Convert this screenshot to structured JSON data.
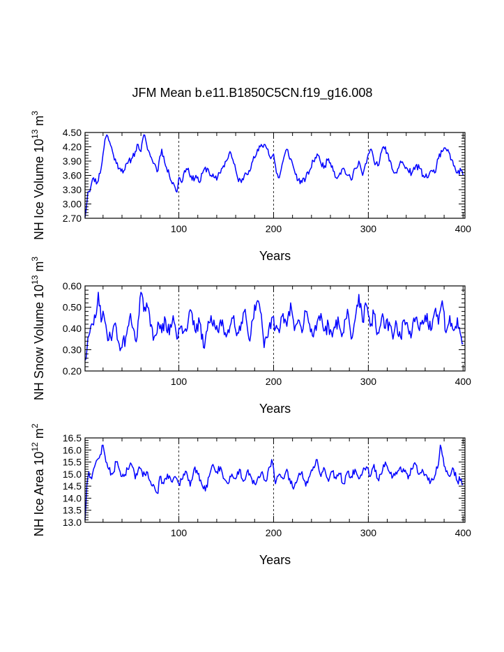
{
  "title": "JFM Mean b.e11.B1850C5CN.f19_g16.008",
  "line_color": "#0000ff",
  "chart_data": [
    {
      "type": "line",
      "name": "ice-volume",
      "ylabel_main": "NH Ice Volume 10",
      "ylabel_exp": "13",
      "ylabel_unit": " m",
      "ylabel_unit_exp": "3",
      "xlabel": "Years",
      "xlim": [
        1,
        402
      ],
      "ylim": [
        2.7,
        4.5
      ],
      "xticks": [
        100,
        200,
        300,
        400
      ],
      "xgrid": [
        100,
        200,
        300
      ],
      "yticks": [
        2.7,
        3.0,
        3.3,
        3.6,
        3.9,
        4.2,
        4.5
      ],
      "ytick_labels": [
        "2.70",
        "3.00",
        "3.30",
        "3.60",
        "3.90",
        "4.20",
        "4.50"
      ],
      "series_anchors": {
        "x": [
          1,
          4,
          7,
          10,
          14,
          18,
          20,
          22,
          24,
          27,
          30,
          34,
          38,
          42,
          46,
          50,
          54,
          57,
          60,
          63,
          66,
          70,
          74,
          78,
          80,
          82,
          86,
          90,
          94,
          96,
          98,
          100,
          103,
          106,
          110,
          114,
          118,
          122,
          126,
          130,
          134,
          138,
          140,
          143,
          147,
          150,
          154,
          158,
          162,
          166,
          170,
          174,
          178,
          182,
          186,
          190,
          194,
          197,
          200,
          203,
          206,
          210,
          214,
          218,
          222,
          226,
          230,
          234,
          238,
          242,
          246,
          250,
          254,
          258,
          262,
          266,
          270,
          274,
          278,
          282,
          286,
          290,
          294,
          298,
          300,
          303,
          306,
          310,
          314,
          318,
          322,
          326,
          330,
          334,
          338,
          342,
          346,
          350,
          354,
          358,
          362,
          366,
          370,
          374,
          378,
          382,
          386,
          390,
          394,
          398,
          400
        ],
        "y": [
          2.72,
          3.25,
          3.35,
          3.55,
          3.45,
          3.75,
          4.05,
          4.35,
          4.45,
          4.3,
          4.1,
          3.85,
          3.75,
          3.7,
          3.85,
          3.95,
          4.1,
          4.25,
          4.1,
          4.45,
          4.25,
          4.0,
          3.85,
          3.7,
          4.0,
          4.15,
          3.8,
          3.6,
          3.45,
          3.35,
          3.25,
          3.55,
          3.45,
          3.7,
          3.75,
          3.5,
          3.6,
          3.45,
          3.7,
          3.75,
          3.6,
          3.55,
          3.5,
          3.65,
          3.8,
          3.9,
          4.1,
          3.85,
          3.55,
          3.45,
          3.65,
          3.7,
          3.9,
          4.05,
          4.2,
          4.25,
          4.15,
          3.95,
          4.05,
          3.65,
          3.55,
          3.9,
          4.15,
          3.95,
          3.7,
          3.5,
          3.45,
          3.55,
          3.7,
          3.9,
          4.05,
          3.85,
          3.8,
          3.95,
          3.8,
          3.55,
          3.65,
          3.75,
          3.6,
          3.5,
          3.75,
          3.9,
          3.6,
          3.85,
          4.05,
          4.15,
          3.9,
          3.8,
          4.1,
          4.2,
          3.9,
          3.7,
          3.65,
          3.9,
          3.8,
          3.7,
          3.65,
          3.8,
          3.75,
          3.6,
          3.55,
          3.7,
          3.65,
          3.95,
          4.1,
          4.15,
          4.05,
          3.8,
          3.65,
          3.7,
          3.6
        ]
      },
      "jitter": 0.07,
      "seed": 11
    },
    {
      "type": "line",
      "name": "snow-volume",
      "ylabel_main": "NH Snow Volume 10",
      "ylabel_exp": "13",
      "ylabel_unit": " m",
      "ylabel_unit_exp": "3",
      "xlabel": "Years",
      "xlim": [
        1,
        402
      ],
      "ylim": [
        0.2,
        0.6
      ],
      "xticks": [
        100,
        200,
        300,
        400
      ],
      "xgrid": [
        100,
        200,
        300
      ],
      "yticks": [
        0.2,
        0.3,
        0.4,
        0.5,
        0.6
      ],
      "ytick_labels": [
        "0.20",
        "0.30",
        "0.40",
        "0.50",
        "0.60"
      ],
      "series_anchors": {
        "x": [
          1,
          3,
          6,
          9,
          12,
          15,
          18,
          21,
          24,
          28,
          32,
          36,
          40,
          44,
          48,
          52,
          56,
          60,
          63,
          66,
          70,
          74,
          78,
          82,
          86,
          90,
          94,
          98,
          102,
          106,
          110,
          114,
          118,
          122,
          126,
          130,
          134,
          138,
          142,
          146,
          150,
          154,
          158,
          162,
          166,
          170,
          174,
          178,
          182,
          186,
          190,
          194,
          198,
          202,
          206,
          210,
          214,
          218,
          222,
          226,
          230,
          234,
          238,
          242,
          246,
          250,
          254,
          258,
          262,
          266,
          270,
          274,
          278,
          282,
          286,
          290,
          294,
          298,
          302,
          306,
          310,
          314,
          318,
          322,
          326,
          330,
          334,
          338,
          342,
          346,
          350,
          354,
          358,
          362,
          366,
          370,
          374,
          378,
          382,
          386,
          390,
          394,
          398,
          400
        ],
        "y": [
          0.25,
          0.3,
          0.38,
          0.42,
          0.45,
          0.57,
          0.43,
          0.46,
          0.38,
          0.36,
          0.42,
          0.34,
          0.31,
          0.36,
          0.45,
          0.4,
          0.36,
          0.57,
          0.48,
          0.52,
          0.41,
          0.36,
          0.43,
          0.38,
          0.44,
          0.37,
          0.46,
          0.35,
          0.41,
          0.39,
          0.44,
          0.47,
          0.38,
          0.43,
          0.31,
          0.39,
          0.46,
          0.41,
          0.38,
          0.44,
          0.36,
          0.41,
          0.46,
          0.38,
          0.43,
          0.49,
          0.35,
          0.44,
          0.52,
          0.48,
          0.31,
          0.36,
          0.45,
          0.4,
          0.38,
          0.47,
          0.41,
          0.52,
          0.39,
          0.44,
          0.38,
          0.48,
          0.42,
          0.36,
          0.43,
          0.47,
          0.39,
          0.42,
          0.36,
          0.44,
          0.4,
          0.38,
          0.49,
          0.35,
          0.44,
          0.56,
          0.43,
          0.51,
          0.41,
          0.47,
          0.38,
          0.45,
          0.4,
          0.43,
          0.35,
          0.42,
          0.36,
          0.44,
          0.4,
          0.38,
          0.45,
          0.39,
          0.42,
          0.47,
          0.39,
          0.48,
          0.42,
          0.53,
          0.38,
          0.46,
          0.39,
          0.45,
          0.36,
          0.33
        ]
      },
      "jitter": 0.035,
      "seed": 29
    },
    {
      "type": "line",
      "name": "ice-area",
      "ylabel_main": "NH Ice Area 10",
      "ylabel_exp": "12",
      "ylabel_unit": " m",
      "ylabel_unit_exp": "2",
      "xlabel": "Years",
      "xlim": [
        1,
        402
      ],
      "ylim": [
        13.0,
        16.5
      ],
      "xticks": [
        100,
        200,
        300,
        400
      ],
      "xgrid": [
        100,
        200,
        300
      ],
      "yticks": [
        13.0,
        13.5,
        14.0,
        14.5,
        15.0,
        15.5,
        16.0,
        16.5
      ],
      "ytick_labels": [
        "13.0",
        "13.5",
        "14.0",
        "14.5",
        "15.0",
        "15.5",
        "16.0",
        "16.5"
      ],
      "series_anchors": {
        "x": [
          1,
          3,
          5,
          8,
          11,
          14,
          17,
          20,
          23,
          26,
          30,
          34,
          38,
          42,
          46,
          50,
          54,
          58,
          62,
          66,
          70,
          74,
          78,
          80,
          84,
          88,
          92,
          96,
          100,
          104,
          108,
          112,
          116,
          120,
          124,
          128,
          132,
          136,
          140,
          144,
          148,
          152,
          156,
          160,
          164,
          168,
          172,
          176,
          180,
          184,
          188,
          192,
          196,
          198,
          202,
          206,
          210,
          214,
          218,
          222,
          226,
          230,
          234,
          238,
          242,
          246,
          250,
          254,
          258,
          262,
          266,
          270,
          274,
          278,
          282,
          286,
          290,
          294,
          298,
          302,
          306,
          310,
          314,
          318,
          322,
          326,
          330,
          334,
          338,
          342,
          346,
          350,
          354,
          358,
          362,
          366,
          370,
          374,
          376,
          378,
          382,
          386,
          390,
          394,
          398,
          400
        ],
        "y": [
          13.1,
          14.6,
          15.1,
          14.8,
          15.3,
          15.6,
          15.8,
          16.2,
          15.5,
          15.2,
          15.0,
          15.5,
          15.1,
          14.9,
          15.2,
          15.4,
          14.8,
          15.3,
          14.9,
          15.1,
          14.7,
          14.5,
          14.2,
          14.9,
          14.6,
          15.0,
          14.7,
          14.9,
          14.6,
          14.8,
          15.1,
          14.5,
          15.2,
          15.0,
          14.6,
          14.3,
          14.9,
          15.4,
          15.1,
          15.3,
          14.8,
          14.6,
          15.0,
          14.8,
          15.2,
          14.7,
          15.1,
          14.9,
          14.6,
          14.9,
          15.1,
          14.7,
          15.3,
          15.6,
          14.6,
          15.0,
          14.8,
          15.2,
          14.6,
          14.5,
          14.9,
          15.1,
          14.5,
          14.9,
          15.3,
          15.6,
          14.9,
          15.2,
          14.7,
          15.1,
          14.8,
          15.0,
          14.6,
          15.1,
          14.9,
          15.2,
          14.8,
          15.1,
          15.3,
          14.9,
          15.4,
          14.8,
          15.0,
          15.5,
          15.1,
          14.9,
          15.0,
          15.3,
          15.1,
          14.8,
          15.2,
          15.4,
          15.0,
          15.1,
          14.9,
          14.7,
          14.9,
          15.4,
          16.2,
          15.8,
          15.1,
          14.9,
          15.2,
          14.7,
          14.8,
          14.6
        ]
      },
      "jitter": 0.15,
      "seed": 47
    }
  ],
  "panel_names": [
    "ice-volume-panel",
    "snow-volume-panel",
    "ice-area-panel"
  ]
}
